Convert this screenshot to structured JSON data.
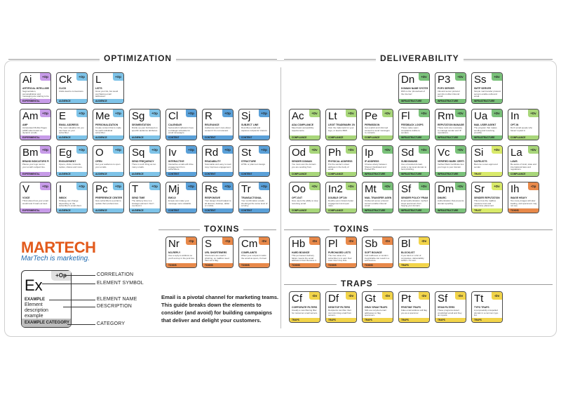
{
  "sections": {
    "optimization": "OPTIMIZATION",
    "deliverability": "DELIVERABILITY",
    "toxins_left": "TOXINS",
    "toxins_right": "TOXINS",
    "traps": "TRAPS"
  },
  "colors": {
    "experimental": "#c79be8",
    "audience": "#7ec3e8",
    "content": "#5aa0d8",
    "infrastructure": "#7ac17a",
    "compliance": "#a8d67a",
    "trust": "#d9ea6a",
    "toxins": "#e8894a",
    "traps": "#f2d44a"
  },
  "brand": {
    "logo": "MARTECH",
    "tagline": "MarTech is marketing."
  },
  "legend": {
    "symbol": "Ex",
    "tag": "+Op",
    "name": "EXAMPLE",
    "description": "Element description example",
    "category": "EXAMPLE CATEGORY",
    "labels": {
      "correlation": "CORRELATION",
      "element_symbol": "ELEMENT SYMBOL",
      "element_name": "ELEMENT NAME",
      "description": "DESCRIPTION",
      "category": "CATEGORY"
    }
  },
  "blurb": "Email is a pivotal channel for marketing teams. This guide breaks down the elements to consider (and avoid) for building campaigns that deliver and delight your customers.",
  "tiles": [
    {
      "sym": "Ai",
      "tag": "+Op",
      "name": "ARTIFICIAL INTELLIGENCE",
      "desc": "Segmentation, personalization and messaging are starting to be powered by AI.",
      "cat": "EXPERIMENTAL",
      "color": "#c79be8"
    },
    {
      "sym": "Ck",
      "tag": "+Op",
      "name": "CLICK",
      "desc": "Clicks lead to conversions.",
      "cat": "AUDIENCE",
      "color": "#7ec3e8"
    },
    {
      "sym": "L",
      "tag": "+Op",
      "name": "LISTS",
      "desc": "Grow your list, but avoid purchasing email addresses.",
      "cat": "AUDIENCE",
      "color": "#7ec3e8"
    },
    {
      "sym": "Am",
      "tag": "+Op",
      "name": "AMP",
      "desc": "Accelerated Mobile Pages (AMP) also known as dynamic emails.",
      "cat": "EXPERIMENTAL",
      "color": "#c79be8"
    },
    {
      "sym": "E",
      "tag": "+Op",
      "name": "EMAIL ADDRESS",
      "desc": "The most valuable info you can have on your subscriber.",
      "cat": "AUDIENCE",
      "color": "#7ec3e8"
    },
    {
      "sym": "Me",
      "tag": "+Op",
      "name": "PERSONALIZATION",
      "desc": "Create content that is made for each individual subscriber.",
      "cat": "AUDIENCE",
      "color": "#7ec3e8"
    },
    {
      "sym": "Sg",
      "tag": "+Op",
      "name": "SEGMENTATION",
      "desc": "Divide up your list based on specific audience attributes.",
      "cat": "AUDIENCE",
      "color": "#7ec3e8"
    },
    {
      "sym": "Cl",
      "tag": "+Op",
      "name": "CALENDAR",
      "desc": "Successful marketers have a strategic schedule for email campaigns.",
      "cat": "CONTENT",
      "color": "#5aa0d8"
    },
    {
      "sym": "R",
      "tag": "+Op",
      "name": "RELEVANCE",
      "desc": "Audiences won't care about content if it's not relevant.",
      "cat": "CONTENT",
      "color": "#5aa0d8"
    },
    {
      "sym": "Sj",
      "tag": "+Op",
      "name": "SUBJECT LINE",
      "desc": "Describes email and captures recipients' interest.",
      "cat": "CONTENT",
      "color": "#5aa0d8"
    },
    {
      "sym": "Bm",
      "tag": "+Op",
      "name": "BRAND INDICATORS FOR MESSAGING IDENTIFICATION",
      "desc": "Places your logo next to your email's subject line.",
      "cat": "EXPERIMENTAL",
      "color": "#c79be8"
    },
    {
      "sym": "Eg",
      "tag": "+Op",
      "name": "ENGAGEMENT",
      "desc": "Opens, clicks, forwards, replies, shares and more.",
      "cat": "AUDIENCE",
      "color": "#7ec3e8"
    },
    {
      "sym": "O",
      "tag": "+Op",
      "name": "OPEN",
      "desc": "Get your audience to open your emails.",
      "cat": "AUDIENCE",
      "color": "#7ec3e8"
    },
    {
      "sym": "Sq",
      "tag": "+Op",
      "name": "SEND FREQUENCY",
      "desc": "There is such thing as too many emails.",
      "cat": "AUDIENCE",
      "color": "#7ec3e8"
    },
    {
      "sym": "Iv",
      "tag": "+Op",
      "name": "INTERACTIVE",
      "desc": "Interactive emails will drive engagement from subscribers.",
      "cat": "CONTENT",
      "color": "#5aa0d8"
    },
    {
      "sym": "Rd",
      "tag": "+Op",
      "name": "READABILITY",
      "desc": "Scannable and easy to read copy improves engagement.",
      "cat": "CONTENT",
      "color": "#5aa0d8"
    },
    {
      "sym": "St",
      "tag": "+Op",
      "name": "STRUCTURE",
      "desc": "HTML or plain text design.",
      "cat": "CONTENT",
      "color": "#5aa0d8"
    },
    {
      "sym": "V",
      "tag": "+Op",
      "name": "VOICE",
      "desc": "Think about how your email would look if read out loud.",
      "cat": "EXPERIMENTAL",
      "color": "#c79be8"
    },
    {
      "sym": "I",
      "tag": "+Op",
      "name": "INBOX",
      "desc": "Strategy can change depending on the subscriber's email client.",
      "cat": "AUDIENCE",
      "color": "#7ec3e8"
    },
    {
      "sym": "Pc",
      "tag": "+Op",
      "name": "PREFERENCE CENTER",
      "desc": "Give subscribers a portal to update their preferences.",
      "cat": "AUDIENCE",
      "color": "#7ec3e8"
    },
    {
      "sym": "T",
      "tag": "+Op",
      "name": "SEND TIME",
      "desc": "The delivery time is a strategic element. Don't overlook it.",
      "cat": "AUDIENCE",
      "color": "#7ec3e8"
    },
    {
      "sym": "Mj",
      "tag": "+Op",
      "name": "EMOJI",
      "desc": "Emojis can make your message more relatable.",
      "cat": "CONTENT",
      "color": "#5aa0d8"
    },
    {
      "sym": "Rs",
      "tag": "+Op",
      "name": "RESPONSIVE",
      "desc": "Your design should adjust to all devices, desktop, tablet or mobile.",
      "cat": "CONTENT",
      "color": "#5aa0d8"
    },
    {
      "sym": "Tr",
      "tag": "+Op",
      "name": "TRANSACTIONAL",
      "desc": "Your confirmation emails should get the same level of scrutiny.",
      "cat": "CONTENT",
      "color": "#5aa0d8"
    },
    {
      "sym": "Dn",
      "tag": "+Dv",
      "name": "DOMAIN NAME SYSTEM",
      "desc": "DNS is the 'phonebook of the internet'.",
      "cat": "INFRASTRUCTURE",
      "color": "#7ac17a"
    },
    {
      "sym": "P3",
      "tag": "+Dv",
      "name": "POP3 SERVER",
      "desc": "Inbound server protocol permits mobile Inbound email.",
      "cat": "INFRASTRUCTURE",
      "color": "#7ac17a"
    },
    {
      "sym": "Ss",
      "tag": "+Dv",
      "name": "SMTP SERVER",
      "desc": "Simple mail transfer protocol servers enable outbound email.",
      "cat": "INFRASTRUCTURE",
      "color": "#7ac17a"
    },
    {
      "sym": "Ac",
      "tag": "+Dv",
      "name": "ADA COMPLIANCE",
      "desc": "Meet basic accessibility requirements.",
      "cat": "COMPLIANCE",
      "color": "#a8d67a"
    },
    {
      "sym": "Lt",
      "tag": "+Dv",
      "name": "LEGIT TRADEMARK OWNERSHIP",
      "desc": "Own the trademark for your logo, or lead to BIMI.",
      "cat": "COMPLIANCE",
      "color": "#a8d67a"
    },
    {
      "sym": "Pe",
      "tag": "+Dv",
      "name": "PERMISSION",
      "desc": "Get explicit and informed consent to send messages to contacts.",
      "cat": "COMPLIANCE",
      "color": "#a8d67a"
    },
    {
      "sym": "Fl",
      "tag": "+Dv",
      "name": "FEEDBACK LOOPS",
      "desc": "These make spam complaints visible to senders.",
      "cat": "INFRASTRUCTURE",
      "color": "#7ac17a"
    },
    {
      "sym": "Rm",
      "tag": "+Dv",
      "name": "REPUTATION MANAGEMENT",
      "desc": "These tools are necessary to manage sender and IP reputations.",
      "cat": "INFRASTRUCTURE",
      "color": "#7ac17a"
    },
    {
      "sym": "Ua",
      "tag": "+Dv",
      "name": "MAIL USER AGENT",
      "desc": "The program that makes sending and receiving possible.",
      "cat": "INFRASTRUCTURE",
      "color": "#7ac17a"
    },
    {
      "sym": "In",
      "tag": "+Dv",
      "name": "OPT-IN",
      "desc": "Don't email people who haven't opted in.",
      "cat": "COMPLIANCE",
      "color": "#a8d67a"
    },
    {
      "sym": "Od",
      "tag": "+Dv",
      "name": "SENDER DOMAIN",
      "desc": "You must own the domain you are sending from.",
      "cat": "COMPLIANCE",
      "color": "#a8d67a"
    },
    {
      "sym": "Ph",
      "tag": "+Dv",
      "name": "PHYSICAL ADDRESS",
      "desc": "Put the sender's street address in the body of email.",
      "cat": "COMPLIANCE",
      "color": "#a8d67a"
    },
    {
      "sym": "Ip",
      "tag": "+Dv",
      "name": "IP ADDRESS",
      "desc": "Choose wisely between Shared, Dedicated and Pooled IPs.",
      "cat": "INFRASTRUCTURE",
      "color": "#7ac17a"
    },
    {
      "sym": "Sd",
      "tag": "+Dv",
      "name": "SUBDOMAINS",
      "desc": "Use a branded domain under a top level domain to fend phishing.",
      "cat": "INFRASTRUCTURE",
      "color": "#7ac17a"
    },
    {
      "sym": "Vc",
      "tag": "+Dv",
      "name": "VERIFIED MARK CERTIFICATE",
      "desc": "Verified Mark Certificate ties your logo to your domain.",
      "cat": "INFRASTRUCTURE",
      "color": "#7ac17a"
    },
    {
      "sym": "Si",
      "tag": "+Dv",
      "name": "SAFELISTS",
      "desc": "Become a user-approved sender.",
      "cat": "TRUST",
      "color": "#d9ea6a"
    },
    {
      "sym": "La",
      "tag": "+Dv",
      "name": "LAWS",
      "desc": "Be aware of local, state and international laws and regulations.",
      "cat": "COMPLIANCE",
      "color": "#a8d67a"
    },
    {
      "sym": "Oo",
      "tag": "+Dv",
      "name": "OPT-OUT",
      "desc": "Give users the ability to stop receiving email.",
      "cat": "COMPLIANCE",
      "color": "#a8d67a"
    },
    {
      "sym": "In2",
      "tag": "+Dv",
      "name": "DOUBLE OPT-IN",
      "desc": "Double opt-in fosters better engagement and open rates.",
      "cat": "COMPLIANCE",
      "color": "#a8d67a"
    },
    {
      "sym": "Mt",
      "tag": "+Dv",
      "name": "MAIL TRANSFER AGENT",
      "desc": "Outbound server protocol servers enable inbound email.",
      "cat": "INFRASTRUCTURE",
      "color": "#7ac17a"
    },
    {
      "sym": "Sf",
      "tag": "+Dv",
      "name": "SENDER POLICY FRAMEWORK",
      "desc": "Email authentication method stops spammers from forging your domain.",
      "cat": "INFRASTRUCTURE",
      "color": "#7ac17a"
    },
    {
      "sym": "Dm",
      "tag": "+Dv",
      "name": "DMARC",
      "desc": "Authentication that prevents domain spoofing.",
      "cat": "INFRASTRUCTURE",
      "color": "#7ac17a"
    },
    {
      "sym": "Sr",
      "tag": "+Dv",
      "name": "SENDER REPUTATION",
      "desc": "This is how the mailbox measure trust and determine placement.",
      "cat": "TRUST",
      "color": "#d9ea6a"
    },
    {
      "sym": "Ih",
      "tag": "-Op",
      "name": "IMAGE HEAVY",
      "desc": "Too many images will slow loading, and spammers may not see.",
      "cat": "TOXINS",
      "color": "#e8894a"
    },
    {
      "sym": "Nr",
      "tag": "-Op",
      "name": "NO-REPLY",
      "desc": "Use a reply-to address so you'll end up in the junk box.",
      "cat": "TOXINS",
      "color": "#e8894a"
    },
    {
      "sym": "S",
      "tag": "-Op",
      "name": "URL SHORTENERS",
      "desc": "Shorteners are used in phishing, so mailbox need them as a flag.",
      "cat": "TOXINS",
      "color": "#e8894a"
    },
    {
      "sym": "Cm",
      "tag": "-Dv",
      "name": "COMPLAINTS",
      "desc": "When your recipient marks the email as spam, it's bad.",
      "cat": "TOXINS",
      "color": "#e8894a"
    },
    {
      "sym": "Hb",
      "tag": "-Dv",
      "name": "HARD BOUNCE",
      "desc": "This permanent delivery failure means the email address is bad. Remove it.",
      "cat": "TOXINS",
      "color": "#e8894a"
    },
    {
      "sym": "Pl",
      "tag": "-Dv",
      "name": "PURCHASED LISTS",
      "desc": "The true value of a subscriber is to earn their trust. Don't buy lists.",
      "cat": "TOXINS",
      "color": "#e8894a"
    },
    {
      "sym": "Sb",
      "tag": "-Dv",
      "name": "SOFT BOUNCE",
      "desc": "Full mailboxes or random inexplicable can result in a soft bounce.",
      "cat": "TOXINS",
      "color": "#e8894a"
    },
    {
      "sym": "Bl",
      "tag": "-Dv",
      "name": "BLOCKLIST",
      "desc": "If you land on a list of companies, deliverability suffers. It's over.",
      "cat": "TRAPS",
      "color": "#f2d44a"
    },
    {
      "sym": "Cf",
      "tag": "-Dv",
      "name": "CORPORATE FILTERS",
      "desc": "Usually a new filtering filter for consumer email servers.",
      "cat": "TRAPS",
      "color": "#f2d44a"
    },
    {
      "sym": "Df",
      "tag": "-Dv",
      "name": "DESKTOP FILTERS",
      "desc": "Recipients can filter their own incoming email from servers.",
      "cat": "TRAPS",
      "color": "#f2d44a"
    },
    {
      "sym": "Gt",
      "tag": "-Dv",
      "name": "GRAY SPAM TRAPS",
      "desc": "Still use recycled email addresses to flag spammers.",
      "cat": "TRAPS",
      "color": "#f2d44a"
    },
    {
      "sym": "Pt",
      "tag": "-Dv",
      "name": "PRISTINE TRAPS",
      "desc": "Fake email address will flag you as a spammer.",
      "cat": "TRAPS",
      "color": "#f2d44a"
    },
    {
      "sym": "Sf",
      "tag": "-Dv",
      "name": "SPAM FILTERS",
      "desc": "These programs detect unsolicited email and they do it quick.",
      "cat": "TRAPS",
      "color": "#f2d44a"
    },
    {
      "sym": "Tt",
      "tag": "-Dv",
      "name": "TYPO TRAPS",
      "desc": "A purposefully misspelled domain in a common typo list.",
      "cat": "TRAPS",
      "color": "#f2d44a"
    }
  ]
}
